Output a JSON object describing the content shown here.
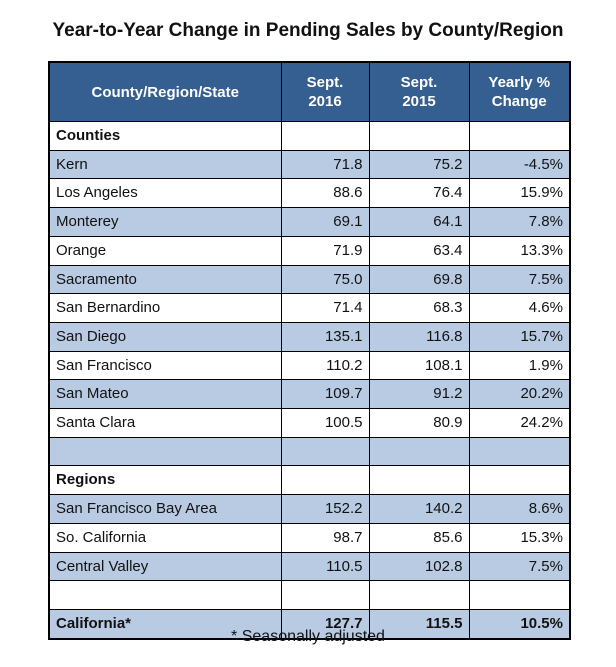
{
  "chart_data": {
    "type": "table",
    "title": "Year-to-Year Change in Pending Sales by County/Region",
    "columns": [
      "County/Region/State",
      "Sept. 2016",
      "Sept. 2015",
      "Yearly % Change"
    ],
    "rows": [
      {
        "kind": "section",
        "cells": [
          "Counties",
          "",
          "",
          ""
        ]
      },
      {
        "kind": "data",
        "cells": [
          "Kern",
          "71.8",
          "75.2",
          "-4.5%"
        ]
      },
      {
        "kind": "data",
        "cells": [
          "Los Angeles",
          "88.6",
          "76.4",
          "15.9%"
        ]
      },
      {
        "kind": "data",
        "cells": [
          "Monterey",
          "69.1",
          "64.1",
          "7.8%"
        ]
      },
      {
        "kind": "data",
        "cells": [
          "Orange",
          "71.9",
          "63.4",
          "13.3%"
        ]
      },
      {
        "kind": "data",
        "cells": [
          "Sacramento",
          "75.0",
          "69.8",
          "7.5%"
        ]
      },
      {
        "kind": "data",
        "cells": [
          "San Bernardino",
          "71.4",
          "68.3",
          "4.6%"
        ]
      },
      {
        "kind": "data",
        "cells": [
          "San Diego",
          "135.1",
          "116.8",
          "15.7%"
        ]
      },
      {
        "kind": "data",
        "cells": [
          "San Francisco",
          "110.2",
          "108.1",
          "1.9%"
        ]
      },
      {
        "kind": "data",
        "cells": [
          "San Mateo",
          "109.7",
          "91.2",
          "20.2%"
        ]
      },
      {
        "kind": "data",
        "cells": [
          "Santa Clara",
          "100.5",
          "80.9",
          "24.2%"
        ]
      },
      {
        "kind": "blank",
        "cells": [
          "",
          "",
          "",
          ""
        ]
      },
      {
        "kind": "section",
        "cells": [
          "Regions",
          "",
          "",
          ""
        ]
      },
      {
        "kind": "data",
        "cells": [
          "San Francisco Bay Area",
          "152.2",
          "140.2",
          "8.6%"
        ]
      },
      {
        "kind": "data",
        "cells": [
          "So. California",
          "98.7",
          "85.6",
          "15.3%"
        ]
      },
      {
        "kind": "data",
        "cells": [
          "Central Valley",
          "110.5",
          "102.8",
          "7.5%"
        ]
      },
      {
        "kind": "blank",
        "cells": [
          "",
          "",
          "",
          ""
        ]
      },
      {
        "kind": "total",
        "cells": [
          "California*",
          "127.7",
          "115.5",
          "10.5%"
        ]
      }
    ],
    "footnote": "* Seasonally adjusted"
  },
  "colors": {
    "header_background": "#365f91",
    "header_text": "#ffffff",
    "stripe": "#b9cbe3"
  }
}
